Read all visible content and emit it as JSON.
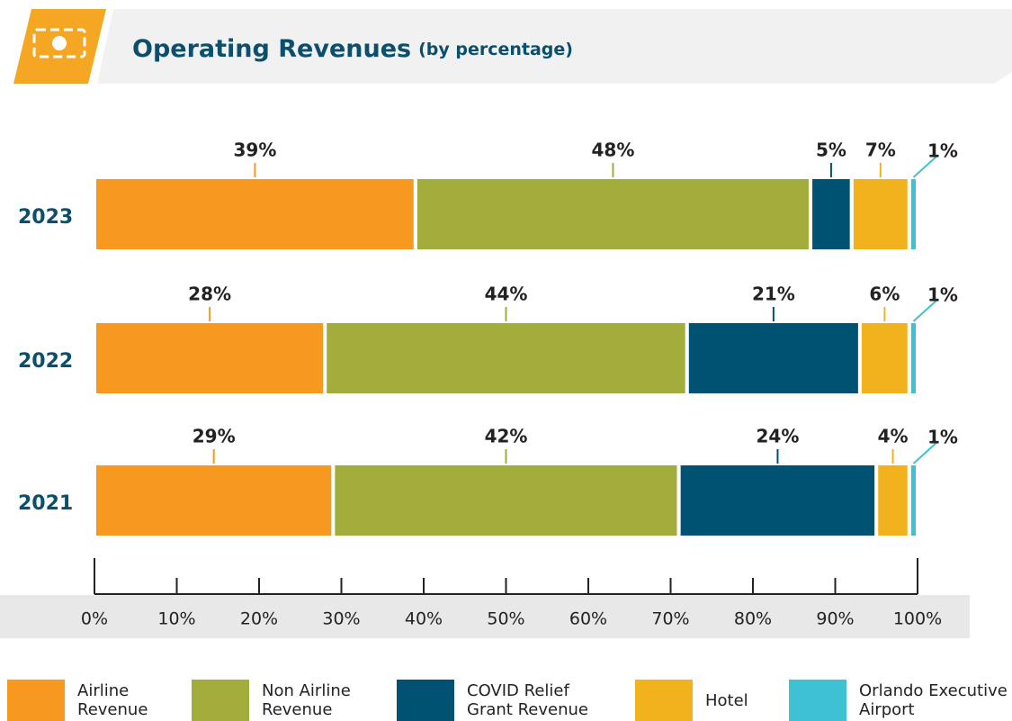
{
  "chart_data": {
    "type": "stacked-barh",
    "title": "Operating Revenues",
    "subtitle": "(by percentage)",
    "categories": [
      "2023",
      "2022",
      "2021"
    ],
    "series": [
      {
        "name": "Airline Revenue",
        "color": "#f7991f",
        "values": [
          39,
          28,
          29
        ],
        "value_labels": [
          "39%",
          "28%",
          "29%"
        ]
      },
      {
        "name": "Non Airline Revenue",
        "color": "#a3ad3b",
        "values": [
          48,
          44,
          42
        ],
        "value_labels": [
          "48%",
          "44%",
          "42%"
        ]
      },
      {
        "name": "COVID Relief Grant Revenue",
        "color": "#005272",
        "values": [
          5,
          21,
          24
        ],
        "value_labels": [
          "5%",
          "21%",
          "24%"
        ]
      },
      {
        "name": "Hotel",
        "color": "#f1b21d",
        "values": [
          7,
          6,
          4
        ],
        "value_labels": [
          "7%",
          "6%",
          "4%"
        ]
      },
      {
        "name": "Orlando Executive Airport",
        "color": "#3ec1d3",
        "values": [
          1,
          1,
          1
        ],
        "value_labels": [
          "1%",
          "1%",
          "1%"
        ]
      }
    ],
    "xlim": [
      0,
      100
    ],
    "xticks": [
      {
        "value": 0,
        "label": "0%"
      },
      {
        "value": 10,
        "label": "10%"
      },
      {
        "value": 20,
        "label": "20%"
      },
      {
        "value": 30,
        "label": "30%"
      },
      {
        "value": 40,
        "label": "40%"
      },
      {
        "value": 50,
        "label": "50%"
      },
      {
        "value": 60,
        "label": "60%"
      },
      {
        "value": 70,
        "label": "70%"
      },
      {
        "value": 80,
        "label": "80%"
      },
      {
        "value": 90,
        "label": "90%"
      },
      {
        "value": 100,
        "label": "100%"
      }
    ],
    "legend": "bottom"
  }
}
